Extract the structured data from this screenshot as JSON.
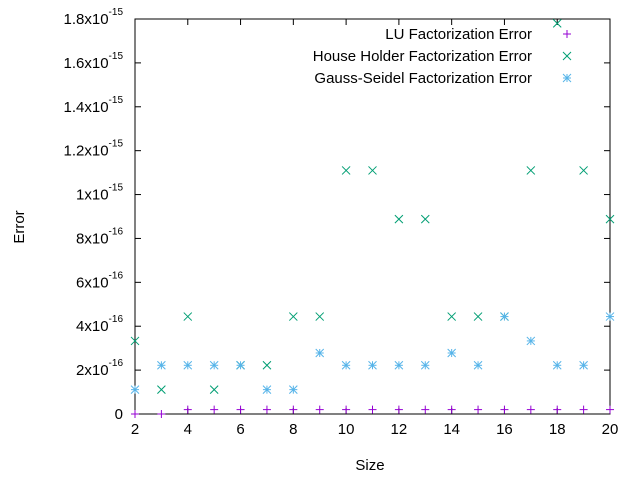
{
  "chart_data": {
    "type": "scatter",
    "title": "",
    "xlabel": "Size",
    "ylabel": "Error",
    "xlim": [
      2,
      20
    ],
    "ylim": [
      0,
      1.8e-15
    ],
    "x_ticks": [
      2,
      4,
      6,
      8,
      10,
      12,
      14,
      16,
      18,
      20
    ],
    "y_ticks": [
      {
        "value": 0,
        "mantissa": "0",
        "exponent": ""
      },
      {
        "value": 2e-16,
        "mantissa": "2x10",
        "exponent": "-16"
      },
      {
        "value": 4e-16,
        "mantissa": "4x10",
        "exponent": "-16"
      },
      {
        "value": 6e-16,
        "mantissa": "6x10",
        "exponent": "-16"
      },
      {
        "value": 8e-16,
        "mantissa": "8x10",
        "exponent": "-16"
      },
      {
        "value": 1e-15,
        "mantissa": "1x10",
        "exponent": "-15"
      },
      {
        "value": 1.2e-15,
        "mantissa": "1.2x10",
        "exponent": "-15"
      },
      {
        "value": 1.4e-15,
        "mantissa": "1.4x10",
        "exponent": "-15"
      },
      {
        "value": 1.6e-15,
        "mantissa": "1.6x10",
        "exponent": "-15"
      },
      {
        "value": 1.8e-15,
        "mantissa": "1.8x10",
        "exponent": "-15"
      }
    ],
    "grid": false,
    "legend_position": "top-right",
    "series": [
      {
        "name": "LU Factorization Error",
        "color": "#9400d3",
        "marker": "plus",
        "x": [
          2,
          3,
          4,
          5,
          6,
          7,
          8,
          9,
          10,
          11,
          12,
          13,
          14,
          15,
          16,
          17,
          18,
          19,
          20
        ],
        "y": [
          0,
          0,
          2e-17,
          2e-17,
          2e-17,
          2e-17,
          2e-17,
          2e-17,
          2e-17,
          2e-17,
          2e-17,
          2e-17,
          2e-17,
          2e-17,
          2e-17,
          2e-17,
          2e-17,
          2e-17,
          2e-17
        ]
      },
      {
        "name": "House Holder Factorization Error",
        "color": "#009e73",
        "marker": "cross",
        "x": [
          2,
          3,
          4,
          5,
          6,
          7,
          8,
          9,
          10,
          11,
          12,
          13,
          14,
          15,
          16,
          17,
          18,
          19,
          20
        ],
        "y": [
          3.33e-16,
          1.11e-16,
          4.44e-16,
          1.11e-16,
          2.22e-16,
          2.22e-16,
          4.44e-16,
          4.44e-16,
          1.11e-15,
          1.11e-15,
          8.88e-16,
          8.88e-16,
          4.44e-16,
          4.44e-16,
          4.44e-16,
          1.11e-15,
          1.78e-15,
          1.11e-15,
          8.88e-16
        ]
      },
      {
        "name": "Gauss-Seidel Factorization Error",
        "color": "#56b4e9",
        "marker": "star",
        "x": [
          2,
          3,
          4,
          5,
          6,
          7,
          8,
          9,
          10,
          11,
          12,
          13,
          14,
          15,
          16,
          17,
          18,
          19,
          20
        ],
        "y": [
          1.11e-16,
          2.22e-16,
          2.22e-16,
          2.22e-16,
          2.22e-16,
          1.11e-16,
          1.11e-16,
          2.78e-16,
          2.22e-16,
          2.22e-16,
          2.22e-16,
          2.22e-16,
          2.78e-16,
          2.22e-16,
          4.44e-16,
          3.33e-16,
          2.22e-16,
          2.22e-16,
          4.44e-16
        ]
      }
    ]
  }
}
